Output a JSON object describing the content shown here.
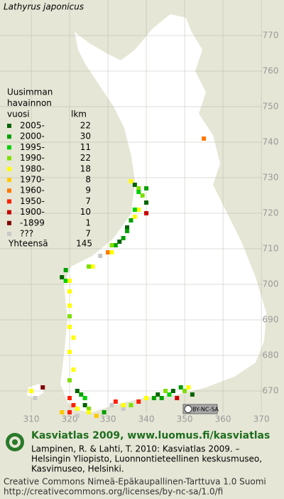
{
  "title": "Lathyrus japonicus",
  "legend": {
    "header": [
      "Uusimman",
      "havainnon",
      "vuosi"
    ],
    "count_header": "lkm",
    "rows": [
      {
        "label": "2005-",
        "count": 22,
        "color": "#006400"
      },
      {
        "label": "2000-",
        "count": 30,
        "color": "#00a000"
      },
      {
        "label": "1995-",
        "count": 11,
        "color": "#00d000"
      },
      {
        "label": "1990-",
        "count": 22,
        "color": "#7ee000"
      },
      {
        "label": "1980-",
        "count": 18,
        "color": "#ffff00"
      },
      {
        "label": "1970-",
        "count": 8,
        "color": "#ffc800"
      },
      {
        "label": "1960-",
        "count": 9,
        "color": "#ff7800"
      },
      {
        "label": "1950-",
        "count": 7,
        "color": "#ff2000"
      },
      {
        "label": "1900-",
        "count": 10,
        "color": "#c80000"
      },
      {
        "label": "-1899",
        "count": 1,
        "color": "#800000"
      },
      {
        "label": "???",
        "count": 7,
        "color": "#c8c8c8"
      }
    ],
    "total_label": "Yhteensä",
    "total": 145
  },
  "map": {
    "xlim": [
      301.85,
      375.9
    ],
    "ylim": [
      662,
      780
    ],
    "xticks": [
      310,
      320,
      330,
      340,
      350,
      360,
      370
    ],
    "yticks": [
      670,
      680,
      690,
      700,
      710,
      720,
      730,
      740,
      750,
      760,
      770
    ],
    "sightings": [
      {
        "x": 355,
        "y": 741,
        "period": 6
      },
      {
        "x": 336,
        "y": 729,
        "period": 4
      },
      {
        "x": 337,
        "y": 728,
        "period": 0
      },
      {
        "x": 338,
        "y": 727,
        "period": 3
      },
      {
        "x": 340,
        "y": 727,
        "period": 1
      },
      {
        "x": 338,
        "y": 726,
        "period": 2
      },
      {
        "x": 339,
        "y": 725,
        "period": 3
      },
      {
        "x": 340,
        "y": 723,
        "period": 0
      },
      {
        "x": 338,
        "y": 721,
        "period": 4
      },
      {
        "x": 337,
        "y": 721,
        "period": 2
      },
      {
        "x": 340,
        "y": 720,
        "period": 8
      },
      {
        "x": 337,
        "y": 719,
        "period": 4
      },
      {
        "x": 336,
        "y": 718,
        "period": 1
      },
      {
        "x": 335,
        "y": 716,
        "period": 0
      },
      {
        "x": 335,
        "y": 715,
        "period": 1
      },
      {
        "x": 334,
        "y": 713,
        "period": 1
      },
      {
        "x": 333,
        "y": 712,
        "period": 0
      },
      {
        "x": 332,
        "y": 711,
        "period": 1
      },
      {
        "x": 331,
        "y": 711,
        "period": 3
      },
      {
        "x": 330,
        "y": 709,
        "period": 6
      },
      {
        "x": 331,
        "y": 709,
        "period": 4
      },
      {
        "x": 328,
        "y": 708,
        "period": 10
      },
      {
        "x": 326,
        "y": 705,
        "period": 4
      },
      {
        "x": 325,
        "y": 705,
        "period": 3
      },
      {
        "x": 319,
        "y": 704,
        "period": 1
      },
      {
        "x": 318,
        "y": 702,
        "period": 0
      },
      {
        "x": 319,
        "y": 701,
        "period": 2
      },
      {
        "x": 320,
        "y": 701,
        "period": 4
      },
      {
        "x": 320,
        "y": 698,
        "period": 4
      },
      {
        "x": 320,
        "y": 694,
        "period": 4
      },
      {
        "x": 320,
        "y": 691,
        "period": 3
      },
      {
        "x": 320,
        "y": 688,
        "period": 4
      },
      {
        "x": 321,
        "y": 685,
        "period": 4
      },
      {
        "x": 320,
        "y": 681,
        "period": 4
      },
      {
        "x": 321,
        "y": 676,
        "period": 4
      },
      {
        "x": 320,
        "y": 673,
        "period": 3
      },
      {
        "x": 310,
        "y": 670,
        "period": 4
      },
      {
        "x": 313,
        "y": 671,
        "period": 9
      },
      {
        "x": 311,
        "y": 668,
        "period": 10
      },
      {
        "x": 320,
        "y": 668,
        "period": 7
      },
      {
        "x": 322,
        "y": 670,
        "period": 0
      },
      {
        "x": 323,
        "y": 669,
        "period": 1
      },
      {
        "x": 324,
        "y": 668,
        "period": 2
      },
      {
        "x": 321,
        "y": 666,
        "period": 7
      },
      {
        "x": 322,
        "y": 665,
        "period": 4
      },
      {
        "x": 324,
        "y": 666,
        "period": 0
      },
      {
        "x": 325,
        "y": 665,
        "period": 3
      },
      {
        "x": 322,
        "y": 663,
        "period": 10
      },
      {
        "x": 325,
        "y": 664,
        "period": 4
      },
      {
        "x": 327,
        "y": 663,
        "period": 5
      },
      {
        "x": 329,
        "y": 664,
        "period": 1
      },
      {
        "x": 331,
        "y": 666,
        "period": 10
      },
      {
        "x": 332,
        "y": 667,
        "period": 7
      },
      {
        "x": 318,
        "y": 664,
        "period": 5
      },
      {
        "x": 320,
        "y": 664,
        "period": 7
      },
      {
        "x": 336,
        "y": 666,
        "period": 3
      },
      {
        "x": 338,
        "y": 667,
        "period": 7
      },
      {
        "x": 340,
        "y": 668,
        "period": 4
      },
      {
        "x": 342,
        "y": 668,
        "period": 1
      },
      {
        "x": 343,
        "y": 669,
        "period": 0
      },
      {
        "x": 344,
        "y": 668,
        "period": 1
      },
      {
        "x": 346,
        "y": 669,
        "period": 2
      },
      {
        "x": 347,
        "y": 670,
        "period": 0
      },
      {
        "x": 349,
        "y": 671,
        "period": 1
      },
      {
        "x": 350,
        "y": 670,
        "period": 3
      },
      {
        "x": 351,
        "y": 671,
        "period": 4
      },
      {
        "x": 352,
        "y": 669,
        "period": 0
      },
      {
        "x": 345,
        "y": 670,
        "period": 3
      },
      {
        "x": 348,
        "y": 668,
        "period": 8
      },
      {
        "x": 334,
        "y": 665,
        "period": 10
      },
      {
        "x": 334,
        "y": 666,
        "period": 4
      }
    ]
  },
  "license_badge": "BY-NC-SA",
  "footer": {
    "site": "Kasviatlas 2009, www.luomus.fi/kasviatlas",
    "citation": [
      "Lampinen, R. & Lahti, T. 2010: Kasviatlas 2009. –",
      "Helsingin Yliopisto, Luonnontieteellinen keskusmuseo,",
      "Kasvimuseo, Helsinki."
    ],
    "license": [
      "Creative Commons Nimeä-Epäkaupallinen-Tarttuva 1.0 Suomi",
      "http://creativecommons.org/licenses/by-nc-sa/1.0/fi"
    ]
  }
}
